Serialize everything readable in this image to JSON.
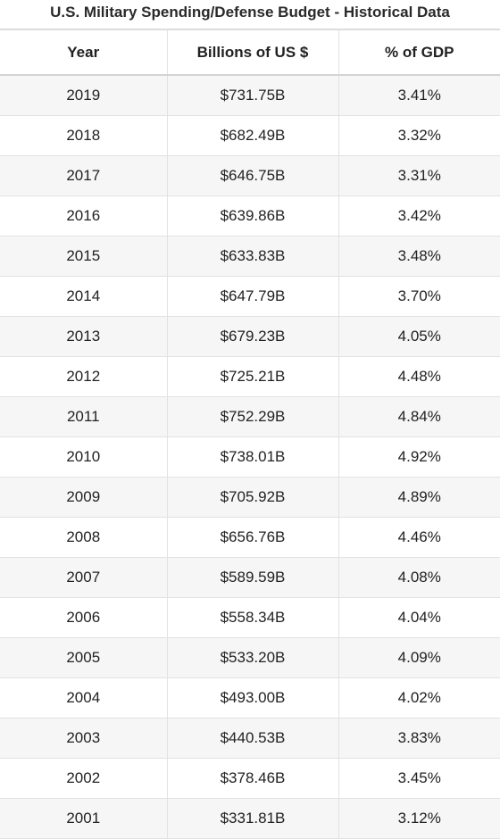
{
  "title": "U.S. Military Spending/Defense Budget - Historical Data",
  "chart_data": {
    "type": "table",
    "title": "U.S. Military Spending/Defense Budget - Historical Data",
    "columns": [
      "Year",
      "Billions of US $",
      "% of GDP"
    ],
    "rows": [
      [
        "2019",
        "$731.75B",
        "3.41%"
      ],
      [
        "2018",
        "$682.49B",
        "3.32%"
      ],
      [
        "2017",
        "$646.75B",
        "3.31%"
      ],
      [
        "2016",
        "$639.86B",
        "3.42%"
      ],
      [
        "2015",
        "$633.83B",
        "3.48%"
      ],
      [
        "2014",
        "$647.79B",
        "3.70%"
      ],
      [
        "2013",
        "$679.23B",
        "4.05%"
      ],
      [
        "2012",
        "$725.21B",
        "4.48%"
      ],
      [
        "2011",
        "$752.29B",
        "4.84%"
      ],
      [
        "2010",
        "$738.01B",
        "4.92%"
      ],
      [
        "2009",
        "$705.92B",
        "4.89%"
      ],
      [
        "2008",
        "$656.76B",
        "4.46%"
      ],
      [
        "2007",
        "$589.59B",
        "4.08%"
      ],
      [
        "2006",
        "$558.34B",
        "4.04%"
      ],
      [
        "2005",
        "$533.20B",
        "4.09%"
      ],
      [
        "2004",
        "$493.00B",
        "4.02%"
      ],
      [
        "2003",
        "$440.53B",
        "3.83%"
      ],
      [
        "2002",
        "$378.46B",
        "3.45%"
      ],
      [
        "2001",
        "$331.81B",
        "3.12%"
      ]
    ]
  }
}
